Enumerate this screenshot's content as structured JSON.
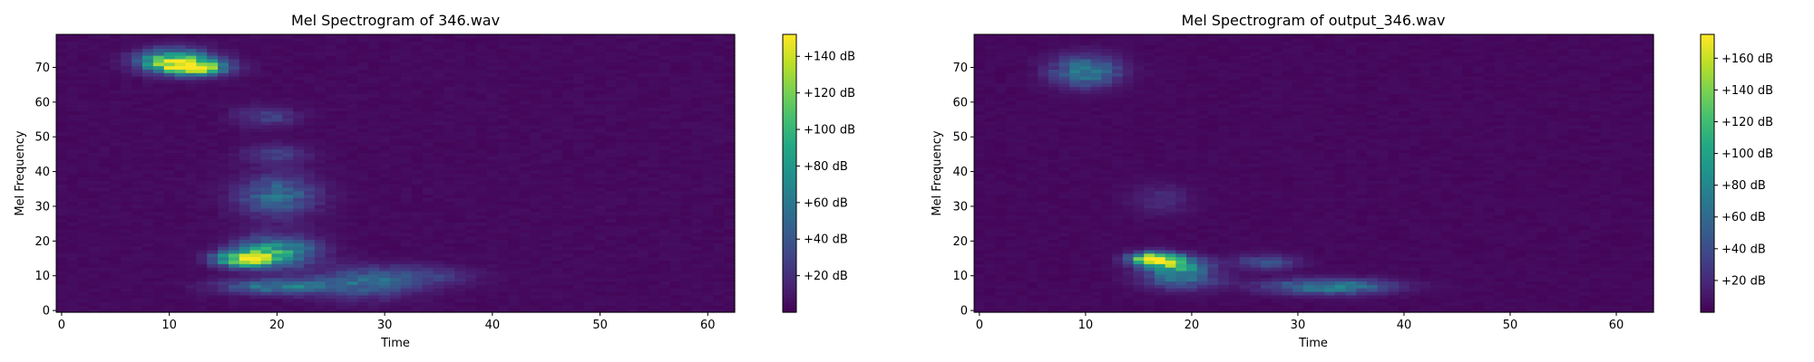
{
  "chart_data": [
    {
      "type": "heatmap",
      "title": "Mel Spectrogram of 346.wav",
      "xlabel": "Time",
      "ylabel": "Mel Frequency",
      "xlim": [
        -0.5,
        62.5
      ],
      "ylim": [
        -0.5,
        79.5
      ],
      "xticks": [
        0,
        10,
        20,
        30,
        40,
        50,
        60
      ],
      "yticks": [
        0,
        10,
        20,
        30,
        40,
        50,
        60,
        70
      ],
      "colormap": "viridis",
      "colorbar": {
        "min": 0,
        "max": 152,
        "ticks": [
          20,
          40,
          60,
          80,
          100,
          120,
          140
        ],
        "tick_labels": [
          "+20 dB",
          "+40 dB",
          "+60 dB",
          "+80 dB",
          "+100 dB",
          "+120 dB",
          "+140 dB"
        ]
      },
      "blobs": [
        {
          "t": 10.5,
          "f": 72,
          "st": 2.2,
          "sf": 2.2,
          "v": 120
        },
        {
          "t": 12.5,
          "f": 70,
          "st": 2.0,
          "sf": 1.5,
          "v": 110
        },
        {
          "t": 17,
          "f": 15,
          "st": 1.8,
          "sf": 1.5,
          "v": 130
        },
        {
          "t": 20,
          "f": 17,
          "st": 2.5,
          "sf": 3.0,
          "v": 80
        },
        {
          "t": 20,
          "f": 7,
          "st": 3.5,
          "sf": 1.5,
          "v": 55
        },
        {
          "t": 20,
          "f": 33,
          "st": 2.5,
          "sf": 4.0,
          "v": 50
        },
        {
          "t": 19,
          "f": 56,
          "st": 2.0,
          "sf": 2.0,
          "v": 25
        },
        {
          "t": 20,
          "f": 45,
          "st": 2.0,
          "sf": 2.0,
          "v": 25
        },
        {
          "t": 28,
          "f": 8,
          "st": 3.5,
          "sf": 3.0,
          "v": 40
        },
        {
          "t": 33,
          "f": 10,
          "st": 3.5,
          "sf": 2.0,
          "v": 25
        }
      ]
    },
    {
      "type": "heatmap",
      "title": "Mel Spectrogram of output_346.wav",
      "xlabel": "Time",
      "ylabel": "Mel Frequency",
      "xlim": [
        -0.5,
        63.5
      ],
      "ylim": [
        -0.5,
        79.5
      ],
      "xticks": [
        0,
        10,
        20,
        30,
        40,
        50,
        60
      ],
      "yticks": [
        0,
        10,
        20,
        30,
        40,
        50,
        60,
        70
      ],
      "colormap": "viridis",
      "colorbar": {
        "min": 0,
        "max": 175,
        "ticks": [
          20,
          40,
          60,
          80,
          100,
          120,
          140,
          160
        ],
        "tick_labels": [
          "+20 dB",
          "+40 dB",
          "+60 dB",
          "+80 dB",
          "+100 dB",
          "+120 dB",
          "+140 dB",
          "+160 dB"
        ]
      },
      "blobs": [
        {
          "t": 10,
          "f": 69,
          "st": 2.2,
          "sf": 3.0,
          "v": 70
        },
        {
          "t": 16.5,
          "f": 15,
          "st": 1.5,
          "sf": 1.3,
          "v": 160
        },
        {
          "t": 18.5,
          "f": 13,
          "st": 2.0,
          "sf": 1.8,
          "v": 90
        },
        {
          "t": 19,
          "f": 9,
          "st": 2.5,
          "sf": 2.0,
          "v": 50
        },
        {
          "t": 33,
          "f": 7,
          "st": 4.0,
          "sf": 1.5,
          "v": 75
        },
        {
          "t": 27,
          "f": 14,
          "st": 2.0,
          "sf": 1.5,
          "v": 40
        },
        {
          "t": 17,
          "f": 32,
          "st": 2.0,
          "sf": 3.0,
          "v": 18
        }
      ]
    }
  ]
}
